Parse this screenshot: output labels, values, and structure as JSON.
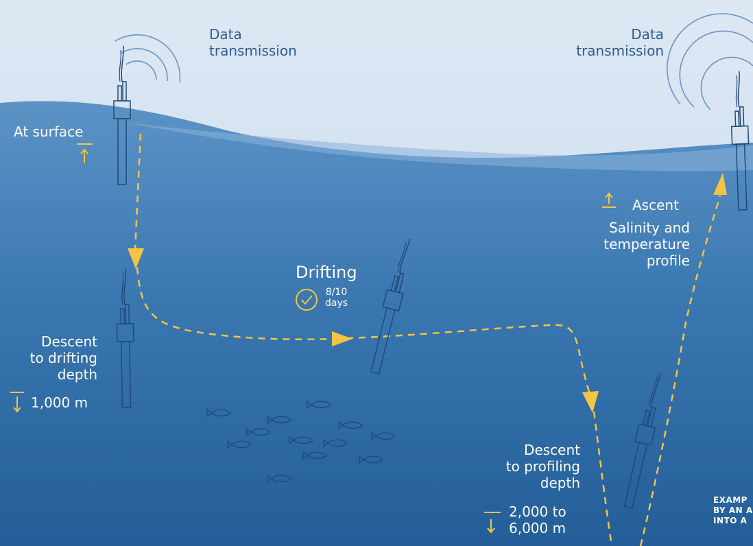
{
  "labels": {
    "data_transmission_left": [
      "Data",
      "transmission"
    ],
    "data_transmission_right": [
      "Data",
      "transmission"
    ],
    "at_surface": "At surface",
    "descent_drifting": [
      "Descent",
      "to drifting",
      "depth"
    ],
    "drifting_depth_value": "1,000 m",
    "drifting": "Drifting",
    "drifting_duration": [
      "8/10",
      "days"
    ],
    "ascent": "Ascent",
    "profile": [
      "Salinity and",
      "temperature",
      "profile"
    ],
    "descent_profiling": [
      "Descent",
      "to profiling",
      "depth"
    ],
    "profiling_depth_value": [
      "2,000 to",
      "6,000 m"
    ],
    "caption": [
      "EXAMP",
      "BY AN A",
      "INTO A"
    ]
  },
  "icons": {
    "up_arrow": "up-arrow-icon",
    "down_arrow": "down-arrow-icon",
    "check": "check-circle-icon",
    "antenna_waves": "radio-waves-icon",
    "float": "argo-float-icon",
    "fish": "fish-icon"
  },
  "colors": {
    "sky_top": "#dfe8f4",
    "sky_bottom": "#c2d4e8",
    "ocean_top": "#5f96c8",
    "ocean_bottom": "#235f9a",
    "path": "#f6c443",
    "outline": "#1f4a7a",
    "sky_text": "#2d5d92",
    "ocean_text": "#ffffff"
  }
}
